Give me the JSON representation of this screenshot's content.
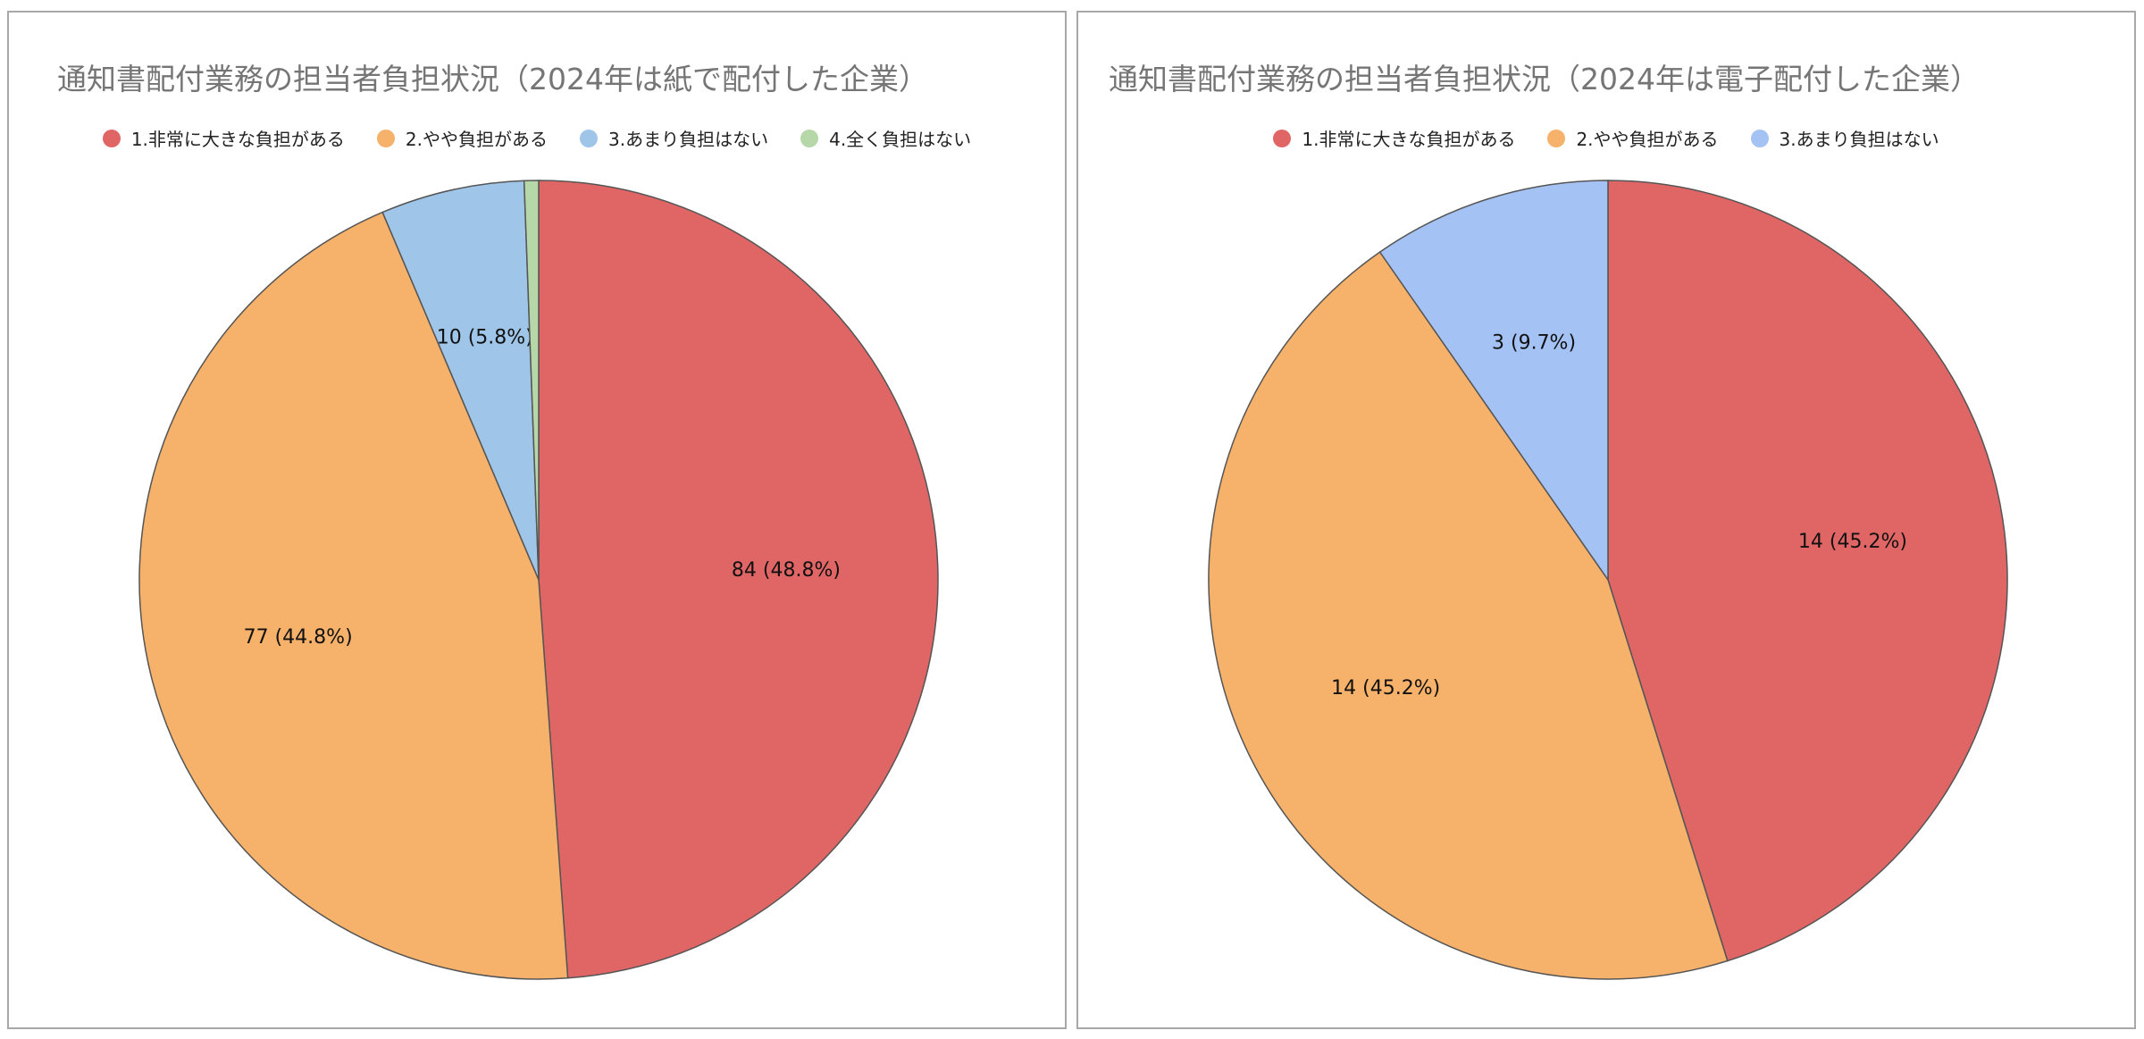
{
  "chart_data": [
    {
      "type": "pie",
      "title": "通知書配付業務の担当者負担状況（2024年は紙で配付した企業）",
      "legend_position": "top",
      "categories": [
        "1.非常に大きな負担がある",
        "2.やや負担がある",
        "3.あまり負担はない",
        "4.全く負担はない"
      ],
      "values": [
        84,
        77,
        10,
        1
      ],
      "data_labels": [
        "84 (48.8%)",
        "77 (44.8%)",
        "10 (5.8%)",
        ""
      ],
      "colors": [
        "#e06666",
        "#f6b26b",
        "#9fc5e8",
        "#b6d7a8"
      ]
    },
    {
      "type": "pie",
      "title": "通知書配付業務の担当者負担状況（2024年は電子配付した企業）",
      "legend_position": "top",
      "categories": [
        "1.非常に大きな負担がある",
        "2.やや負担がある",
        "3.あまり負担はない"
      ],
      "values": [
        14,
        14,
        3
      ],
      "data_labels": [
        "14 (45.2%)",
        "14 (45.2%)",
        "3 (9.7%)"
      ],
      "colors": [
        "#e06666",
        "#f6b26b",
        "#a4c2f4"
      ]
    }
  ]
}
